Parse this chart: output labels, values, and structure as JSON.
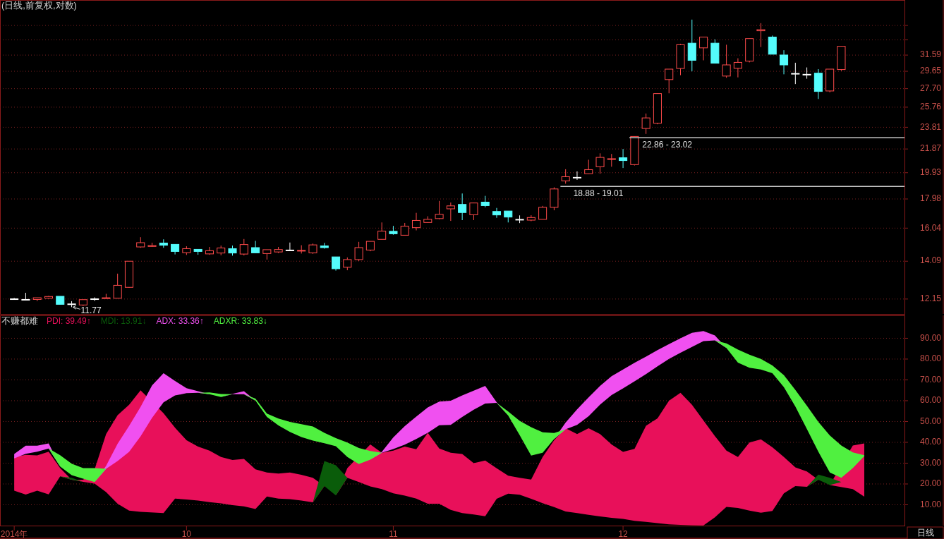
{
  "chart_data": [
    {
      "type": "candlestick",
      "title": "(日线,前复权,对数)",
      "log": true,
      "grid": "y",
      "categories": [
        null,
        null,
        null,
        null,
        null,
        null,
        null,
        null,
        null,
        null,
        null,
        null,
        null,
        null,
        null,
        null,
        null,
        null,
        null,
        null,
        null,
        null,
        null,
        null,
        null,
        null,
        null,
        null,
        null,
        null,
        null,
        null,
        null,
        null,
        null,
        null,
        null,
        null,
        null,
        null,
        null,
        null,
        null,
        null,
        null,
        null,
        null,
        null,
        null,
        null,
        null,
        null,
        null,
        null,
        null,
        null,
        null,
        null,
        null,
        null,
        null,
        null,
        null,
        null,
        null,
        null,
        null,
        null,
        null,
        null,
        null,
        null,
        null,
        null,
        null,
        null,
        null,
        null
      ],
      "ylim": [
        11.46,
        39.2
      ],
      "yticks": [
        12.15,
        14.09,
        16.04,
        17.98,
        19.93,
        21.87,
        23.81,
        25.76,
        {
          "value": 27.7,
          "label": "27.70"
        },
        29.65,
        31.59,
        {
          "value": 33.53,
          "label": null
        },
        {
          "value": 35.48,
          "label": null
        }
      ],
      "ohlc": [
        [
          12.16,
          12.2,
          12.13,
          12.16
        ],
        [
          12.13,
          12.45,
          12.13,
          12.13
        ],
        [
          12.13,
          12.21,
          12.05,
          12.21
        ],
        [
          12.19,
          12.3,
          12.17,
          12.27
        ],
        [
          12.28,
          12.28,
          11.9,
          11.9
        ],
        [
          11.92,
          12.05,
          11.77,
          11.92
        ],
        [
          11.87,
          12.12,
          11.82,
          12.12
        ],
        [
          12.16,
          12.23,
          12.06,
          12.16
        ],
        [
          12.17,
          12.4,
          12.17,
          12.21
        ],
        [
          12.19,
          13.42,
          12.19,
          12.82
        ],
        [
          12.72,
          14.09,
          12.7,
          14.09
        ],
        [
          14.9,
          15.48,
          14.85,
          15.15
        ],
        [
          14.93,
          15.15,
          14.9,
          14.98
        ],
        [
          15.13,
          15.35,
          14.85,
          15.0
        ],
        [
          15.05,
          15.05,
          14.47,
          14.64
        ],
        [
          14.57,
          14.94,
          14.44,
          14.8
        ],
        [
          14.76,
          14.76,
          14.45,
          14.64
        ],
        [
          14.5,
          14.9,
          14.45,
          14.68
        ],
        [
          14.55,
          14.98,
          14.42,
          14.84
        ],
        [
          14.8,
          14.98,
          14.4,
          14.55
        ],
        [
          14.49,
          15.37,
          14.41,
          15.04
        ],
        [
          14.86,
          15.26,
          14.56,
          14.56
        ],
        [
          14.52,
          14.74,
          14.18,
          14.74
        ],
        [
          14.61,
          14.9,
          14.55,
          14.75
        ],
        [
          14.72,
          15.16,
          14.67,
          14.72
        ],
        [
          14.66,
          15.0,
          14.52,
          14.7
        ],
        [
          14.56,
          15.1,
          14.5,
          15.02
        ],
        [
          14.96,
          15.14,
          14.8,
          14.86
        ],
        [
          14.33,
          14.33,
          13.58,
          13.68
        ],
        [
          13.76,
          14.3,
          13.6,
          14.18
        ],
        [
          14.18,
          15.2,
          14.1,
          14.86
        ],
        [
          14.72,
          15.23,
          14.65,
          15.23
        ],
        [
          15.35,
          16.4,
          15.35,
          15.85
        ],
        [
          15.84,
          16.18,
          15.63,
          15.69
        ],
        [
          15.6,
          16.37,
          15.6,
          16.16
        ],
        [
          16.07,
          17.03,
          15.9,
          16.53
        ],
        [
          16.4,
          16.8,
          16.4,
          16.6
        ],
        [
          16.65,
          17.84,
          16.6,
          16.93
        ],
        [
          17.3,
          17.73,
          16.5,
          17.5
        ],
        [
          17.6,
          18.37,
          16.55,
          17.05
        ],
        [
          16.9,
          17.7,
          16.55,
          17.7
        ],
        [
          17.76,
          18.2,
          17.4,
          17.52
        ],
        [
          17.12,
          17.36,
          16.7,
          16.89
        ],
        [
          17.15,
          17.15,
          16.4,
          16.75
        ],
        [
          16.6,
          16.86,
          16.36,
          16.6
        ],
        [
          16.55,
          16.87,
          16.48,
          16.72
        ],
        [
          16.6,
          17.5,
          16.6,
          17.4
        ],
        [
          17.4,
          18.82,
          17.2,
          18.7
        ],
        [
          19.3,
          20.2,
          19.09,
          19.62
        ],
        [
          19.57,
          20.03,
          19.38,
          19.57
        ],
        [
          19.85,
          20.97,
          19.85,
          20.17
        ],
        [
          20.4,
          21.5,
          19.85,
          21.16
        ],
        [
          21.0,
          21.45,
          20.4,
          21.05
        ],
        [
          21.13,
          21.87,
          20.3,
          20.9
        ],
        [
          20.57,
          22.97,
          20.5,
          22.97
        ],
        [
          23.7,
          25.13,
          23.2,
          24.7
        ],
        [
          24.19,
          27.17,
          24.09,
          27.17
        ],
        [
          28.7,
          29.9,
          27.2,
          29.9
        ],
        [
          29.98,
          33.0,
          29.2,
          32.9
        ],
        [
          33.1,
          36.3,
          29.64,
          30.95
        ],
        [
          32.5,
          33.9,
          30.95,
          33.9
        ],
        [
          33.1,
          33.6,
          30.6,
          30.6
        ],
        [
          29.1,
          32.9,
          28.9,
          30.4
        ],
        [
          30.0,
          31.2,
          28.95,
          30.7
        ],
        [
          30.85,
          33.7,
          30.7,
          33.7
        ],
        [
          34.75,
          35.8,
          32.6,
          34.9
        ],
        [
          33.9,
          34.1,
          31.7,
          31.7
        ],
        [
          31.6,
          32.2,
          29.3,
          30.4
        ],
        [
          29.4,
          30.66,
          28.2,
          29.4
        ],
        [
          29.3,
          30.1,
          28.8,
          29.3
        ],
        [
          29.43,
          29.9,
          26.6,
          27.4
        ],
        [
          27.45,
          29.9,
          27.3,
          29.9
        ],
        [
          29.85,
          32.7,
          29.7,
          32.7
        ],
        null,
        null,
        null,
        null,
        null
      ],
      "ref_lines": [
        {
          "axis": "y",
          "value": 18.88,
          "label": "18.88 - 19.01",
          "color": "#c8c8c8"
        },
        {
          "axis": "y",
          "value": 22.86,
          "label": "22.86 - 23.02",
          "color": "#c8c8c8"
        }
      ],
      "annotations": [
        "11.77"
      ]
    },
    {
      "type": "area",
      "title": "不赚都难",
      "grid": "y",
      "categories": [
        "2014年",
        null,
        null,
        null,
        null,
        null,
        null,
        null,
        null,
        null,
        null,
        null,
        null,
        null,
        null,
        "10",
        null,
        null,
        null,
        null,
        null,
        null,
        null,
        null,
        null,
        null,
        null,
        null,
        null,
        null,
        null,
        null,
        null,
        "11",
        null,
        null,
        null,
        null,
        null,
        null,
        null,
        null,
        null,
        null,
        null,
        null,
        null,
        null,
        null,
        null,
        null,
        null,
        null,
        "12",
        null,
        null,
        null,
        null,
        null,
        null,
        null,
        null,
        null,
        null,
        null,
        null,
        null,
        null,
        null,
        null,
        null,
        null,
        null,
        null,
        null,
        null,
        null,
        null
      ],
      "ylim": [
        0,
        101
      ],
      "yticks": [
        {
          "value": 10,
          "label": "10.00"
        },
        {
          "value": 20,
          "label": "20.00"
        },
        {
          "value": 30,
          "label": "30.00"
        },
        {
          "value": 40,
          "label": "40.00"
        },
        {
          "value": 50,
          "label": "50.00"
        },
        {
          "value": 60,
          "label": "60.00"
        },
        {
          "value": 70,
          "label": "70.00"
        },
        {
          "value": 80,
          "label": "80.00"
        },
        {
          "value": 90,
          "label": "90.00"
        }
      ],
      "series": [
        {
          "name": "PDI: 39.49↑",
          "color": "#e8105a",
          "values": [
            33.0,
            34,
            33.7,
            35.5,
            27.6,
            22,
            22,
            27,
            44,
            53,
            58,
            65,
            null,
            54,
            47,
            41,
            38,
            36,
            33,
            31.5,
            32,
            27,
            25.5,
            25,
            25.5,
            24.4,
            23,
            19,
            14.5,
            27.6,
            null,
            39,
            35,
            36,
            38,
            36.7,
            44.6,
            37,
            35,
            34.4,
            30,
            31.3,
            27.5,
            24,
            23,
            22.1,
            33,
            41,
            46.8,
            44,
            46.8,
            44,
            39,
            35.4,
            36.9,
            48,
            51.5,
            60,
            63.8,
            58,
            50.5,
            43,
            36,
            33,
            39.9,
            41.4,
            37.6,
            33,
            28,
            26,
            22,
            19.5,
            null,
            38.5,
            39.49,
            null,
            null,
            null
          ]
        },
        {
          "name": "MDI: 13.91↓",
          "color": "#0a5c0a",
          "values": [
            16.8,
            14.9,
            16.8,
            15,
            23.6,
            23,
            21,
            20.2,
            16.1,
            10.5,
            7.2,
            6.6,
            6.3,
            6.0,
            13,
            12.5,
            12.0,
            11.3,
            10.7,
            9.8,
            9.2,
            8.0,
            14,
            13,
            12.7,
            12,
            11.2,
            31,
            29,
            23,
            20.5,
            18.8,
            17.5,
            15.5,
            14.4,
            13,
            10.5,
            10.5,
            7.5,
            6.0,
            5.3,
            4.5,
            12.9,
            15.3,
            14.8,
            12.9,
            10.8,
            8.9,
            6.8,
            6.0,
            5.2,
            4.4,
            3.7,
            3.2,
            2.3,
            1.8,
            1.2,
            0.6,
            0.3,
            0.2,
            0.1,
            4,
            9.0,
            8.5,
            7.2,
            6.2,
            7,
            15.5,
            19,
            18.6,
            24.5,
            23,
            20.9,
            17.5,
            13.91,
            null,
            null,
            null
          ]
        },
        {
          "name": "ADX: 33.36↑",
          "color": "#f050f0",
          "values": [
            34.4,
            38.4,
            38.4,
            39.5,
            28.4,
            24.2,
            22.5,
            20.9,
            28.7,
            39.3,
            47.9,
            57.0,
            67.4,
            73.2,
            69.5,
            66,
            64.6,
            63.1,
            61.8,
            63.3,
            64.6,
            60.1,
            52.2,
            48.1,
            45.0,
            42.5,
            40.8,
            39.6,
            38.1,
            33.0,
            29.6,
            31.7,
            35.4,
            42.4,
            47.8,
            52.4,
            56.8,
            59.6,
            60,
            62.5,
            64.8,
            67.1,
            59.2,
            52.9,
            43.5,
            33.6,
            35.0,
            41.6,
            49.5,
            55.8,
            61.6,
            67.1,
            71.8,
            75.0,
            78.2,
            81.2,
            84.3,
            87.2,
            90.0,
            92.6,
            93.5,
            91.3,
            85.3,
            78.3,
            75.8,
            75.0,
            73.2,
            66.5,
            57.2,
            46.4,
            35.5,
            25.5,
            23.0,
            27.6,
            33.36,
            null,
            null,
            null
          ]
        },
        {
          "name": "ADXR: 33.83↓",
          "color": "#50f040",
          "values": [
            32.3,
            34.5,
            35.5,
            37,
            33.8,
            29.7,
            27.6,
            27.6,
            27.3,
            31,
            35.4,
            42.9,
            51.8,
            59.2,
            62.5,
            63.6,
            63.8,
            64,
            63.2,
            63.1,
            63.1,
            61,
            53.8,
            51.4,
            49.8,
            48.7,
            47.6,
            44.6,
            42.0,
            39.9,
            37.3,
            35.8,
            35.0,
            36.8,
            38.9,
            41.6,
            44.6,
            48.2,
            48.4,
            52.2,
            55.7,
            58.6,
            59.0,
            54.8,
            50.3,
            47.3,
            44.8,
            44.5,
            46.3,
            48.4,
            52.5,
            58.1,
            62.7,
            65.9,
            69.3,
            72.8,
            76.5,
            80.1,
            83.0,
            85.8,
            88.6,
            89.0,
            87.5,
            84.6,
            82.1,
            80.1,
            76.9,
            72.3,
            65.2,
            57.6,
            49.8,
            43.3,
            38.5,
            35.2,
            33.83,
            null,
            null,
            null
          ]
        }
      ],
      "annotations": [
        "日线"
      ]
    }
  ]
}
